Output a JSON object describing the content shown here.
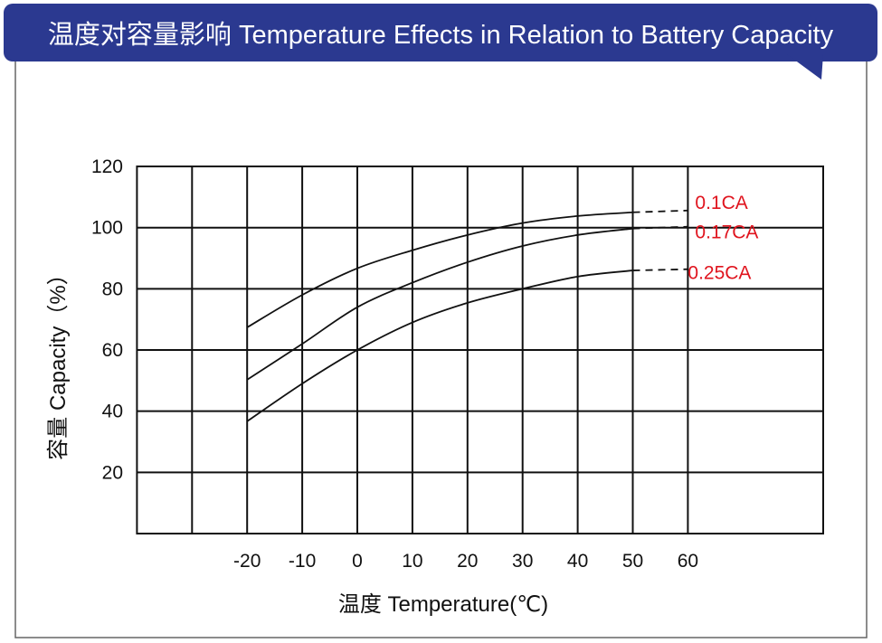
{
  "chart_data": {
    "type": "line",
    "title": "温度对容量影响  Temperature Effects in Relation to Battery Capacity",
    "xlabel": "温度  Temperature(℃)",
    "ylabel": "容量  Capacity（%）",
    "xlim": [
      -40,
      70
    ],
    "ylim": [
      0,
      120
    ],
    "x_ticks": [
      "-20",
      "-10",
      "0",
      "10",
      "20",
      "30",
      "40",
      "50",
      "60"
    ],
    "y_ticks": [
      "20",
      "40",
      "60",
      "80",
      "100",
      "120"
    ],
    "grid": true,
    "x": [
      -20,
      -10,
      0,
      10,
      20,
      30,
      40,
      50
    ],
    "series": [
      {
        "name": "0.1CA",
        "values": [
          67.4,
          78,
          86.7,
          92.6,
          97.6,
          101.5,
          103.8,
          105
        ],
        "extrapolated_60": 105.6
      },
      {
        "name": "0.17CA",
        "values": [
          50.3,
          62,
          74,
          82,
          88.7,
          94,
          97.6,
          99.7
        ],
        "extrapolated_60": 100.3
      },
      {
        "name": "0.25CA",
        "values": [
          36.7,
          49,
          60,
          69,
          75.4,
          80,
          84,
          86
        ],
        "extrapolated_60": 86.4
      }
    ],
    "colors": {
      "banner": "#2b3990",
      "series_label": "#e0141e",
      "line": "#111111"
    }
  }
}
